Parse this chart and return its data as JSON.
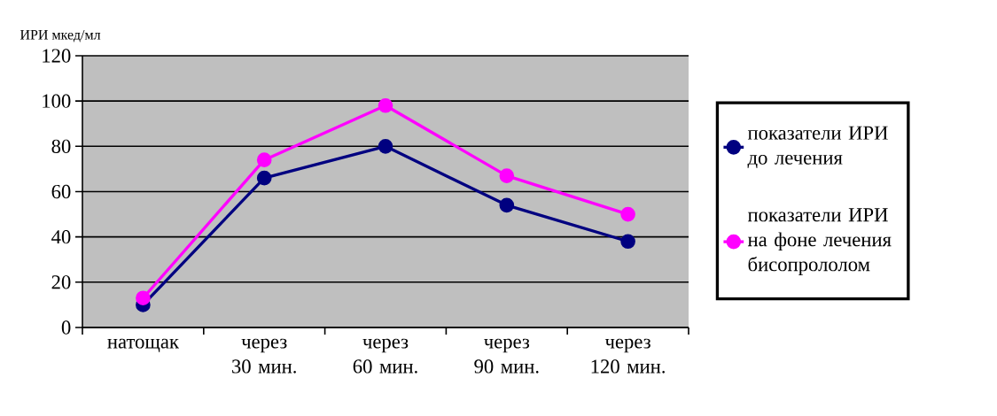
{
  "chart_data": {
    "type": "line",
    "ylabel": "ИРИ мкед/мл",
    "categories": [
      "натощак",
      "через 30 мин.",
      "через 60 мин.",
      "через 90 мин.",
      "через 120 мин."
    ],
    "series": [
      {
        "name": "показатели ИРИ до лечения",
        "color": "#000080",
        "values": [
          10,
          66,
          80,
          54,
          38
        ]
      },
      {
        "name": "показатели ИРИ на фоне лечения бисопрололом",
        "color": "#ff00ff",
        "values": [
          13,
          74,
          98,
          67,
          50
        ]
      }
    ],
    "ylim": [
      0,
      120
    ],
    "yticks": [
      0,
      20,
      40,
      60,
      80,
      100,
      120
    ],
    "grid": "y",
    "legend": "right",
    "marker": "circle",
    "line_style": "solid"
  }
}
